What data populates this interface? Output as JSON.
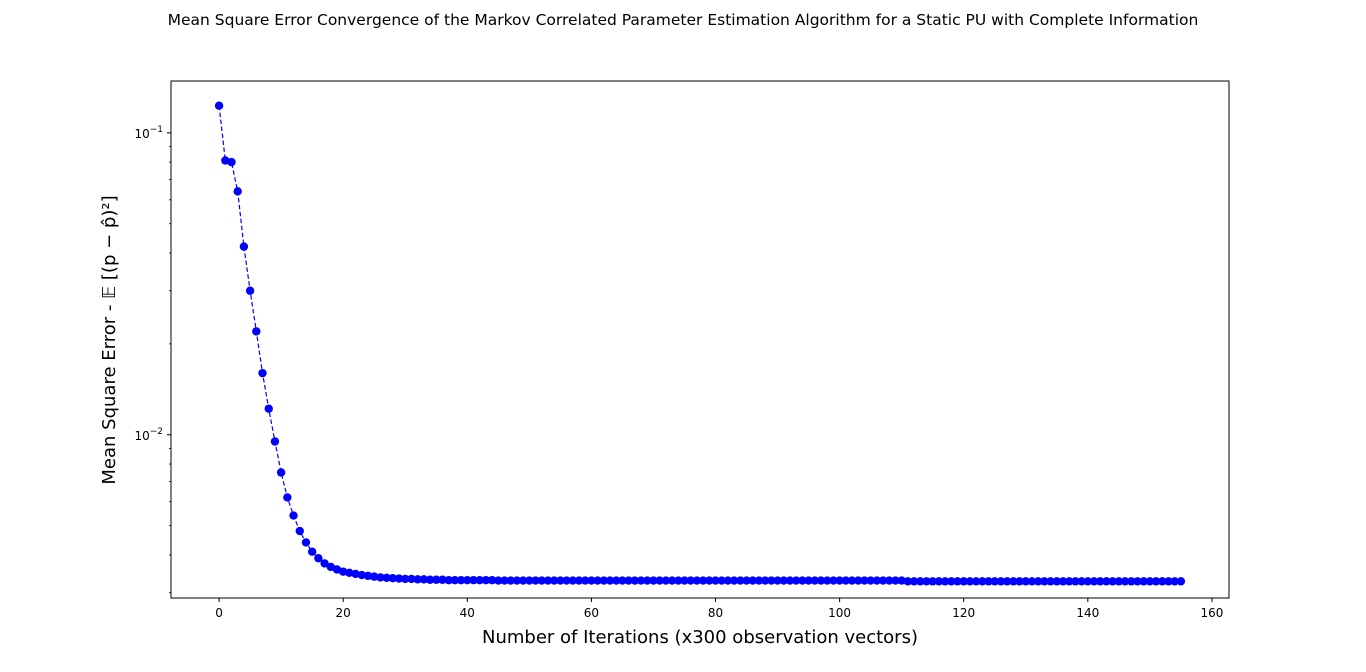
{
  "chart_data": {
    "type": "line",
    "title": "Mean Square Error Convergence of the Markov Correlated Parameter Estimation Algorithm for a Static PU with Complete Information",
    "xlabel": "Number of Iterations (x300 observation vectors)",
    "ylabel": "Mean Square Error - 𝔼 [(p − p̂)²]",
    "yscale": "log",
    "xlim": [
      -7.75,
      162.75
    ],
    "ylim": [
      0.00288,
      0.1485
    ],
    "grid": false,
    "line_style": "dashed",
    "marker": "circle",
    "color": "#0000ff",
    "x_ticks": [
      {
        "value": 0,
        "label": "0"
      },
      {
        "value": 20,
        "label": "20"
      },
      {
        "value": 40,
        "label": "40"
      },
      {
        "value": 60,
        "label": "60"
      },
      {
        "value": 80,
        "label": "80"
      },
      {
        "value": 100,
        "label": "100"
      },
      {
        "value": 120,
        "label": "120"
      },
      {
        "value": 140,
        "label": "140"
      },
      {
        "value": 160,
        "label": "160"
      }
    ],
    "y_ticks": [
      {
        "value": 0.1,
        "base": "10",
        "exp": "−1"
      },
      {
        "value": 0.01,
        "base": "10",
        "exp": "−2"
      }
    ],
    "x": [
      0,
      1,
      2,
      3,
      4,
      5,
      6,
      7,
      8,
      9,
      10,
      11,
      12,
      13,
      14,
      15,
      16,
      17,
      18,
      19,
      20,
      21,
      22,
      23,
      24,
      25,
      26,
      27,
      28,
      29,
      30,
      31,
      32,
      33,
      34,
      35,
      36,
      37,
      38,
      39,
      40,
      41,
      42,
      43,
      44,
      45,
      46,
      47,
      48,
      49,
      50,
      51,
      52,
      53,
      54,
      55,
      56,
      57,
      58,
      59,
      60,
      61,
      62,
      63,
      64,
      65,
      66,
      67,
      68,
      69,
      70,
      71,
      72,
      73,
      74,
      75,
      76,
      77,
      78,
      79,
      80,
      81,
      82,
      83,
      84,
      85,
      86,
      87,
      88,
      89,
      90,
      91,
      92,
      93,
      94,
      95,
      96,
      97,
      98,
      99,
      100,
      101,
      102,
      103,
      104,
      105,
      106,
      107,
      108,
      109,
      110,
      111,
      112,
      113,
      114,
      115,
      116,
      117,
      118,
      119,
      120,
      121,
      122,
      123,
      124,
      125,
      126,
      127,
      128,
      129,
      130,
      131,
      132,
      133,
      134,
      135,
      136,
      137,
      138,
      139,
      140,
      141,
      142,
      143,
      144,
      145,
      146,
      147,
      148,
      149,
      150,
      151,
      152,
      153,
      154,
      155
    ],
    "series": [
      {
        "values": [
          0.123,
          0.081,
          0.08,
          0.064,
          0.042,
          0.03,
          0.022,
          0.016,
          0.0122,
          0.0095,
          0.0075,
          0.0062,
          0.0054,
          0.0048,
          0.0044,
          0.0041,
          0.0039,
          0.00375,
          0.00365,
          0.00358,
          0.00352,
          0.00349,
          0.00346,
          0.00343,
          0.00341,
          0.00339,
          0.00337,
          0.00336,
          0.00335,
          0.00334,
          0.00333,
          0.00333,
          0.00332,
          0.00332,
          0.00331,
          0.00331,
          0.00331,
          0.0033,
          0.0033,
          0.0033,
          0.0033,
          0.0033,
          0.0033,
          0.0033,
          0.0033,
          0.00329,
          0.00329,
          0.00329,
          0.00329,
          0.00329,
          0.00329,
          0.00329,
          0.00329,
          0.00329,
          0.00329,
          0.00329,
          0.00329,
          0.00329,
          0.00329,
          0.00329,
          0.00329,
          0.00329,
          0.00329,
          0.00329,
          0.00329,
          0.00329,
          0.00329,
          0.00329,
          0.00329,
          0.00329,
          0.00329,
          0.00329,
          0.00329,
          0.00329,
          0.00329,
          0.00329,
          0.00329,
          0.00329,
          0.00329,
          0.00329,
          0.00329,
          0.00329,
          0.00329,
          0.00329,
          0.00329,
          0.00329,
          0.00329,
          0.00329,
          0.00329,
          0.00329,
          0.00329,
          0.00329,
          0.00329,
          0.00329,
          0.00329,
          0.00329,
          0.00329,
          0.00329,
          0.00329,
          0.00329,
          0.00329,
          0.00329,
          0.00329,
          0.00329,
          0.00329,
          0.00329,
          0.00329,
          0.00329,
          0.00329,
          0.00329,
          0.00329,
          0.00327,
          0.00327,
          0.00327,
          0.00327,
          0.00327,
          0.00327,
          0.00327,
          0.00327,
          0.00327,
          0.00327,
          0.00327,
          0.00327,
          0.00327,
          0.00327,
          0.00327,
          0.00327,
          0.00327,
          0.00327,
          0.00327,
          0.00327,
          0.00327,
          0.00327,
          0.00327,
          0.00327,
          0.00327,
          0.00327,
          0.00327,
          0.00327,
          0.00327,
          0.00327,
          0.00327,
          0.00327,
          0.00327,
          0.00327,
          0.00327,
          0.00327,
          0.00327,
          0.00327,
          0.00327,
          0.00327,
          0.00327,
          0.00327,
          0.00327,
          0.00327,
          0.00327
        ]
      }
    ]
  }
}
